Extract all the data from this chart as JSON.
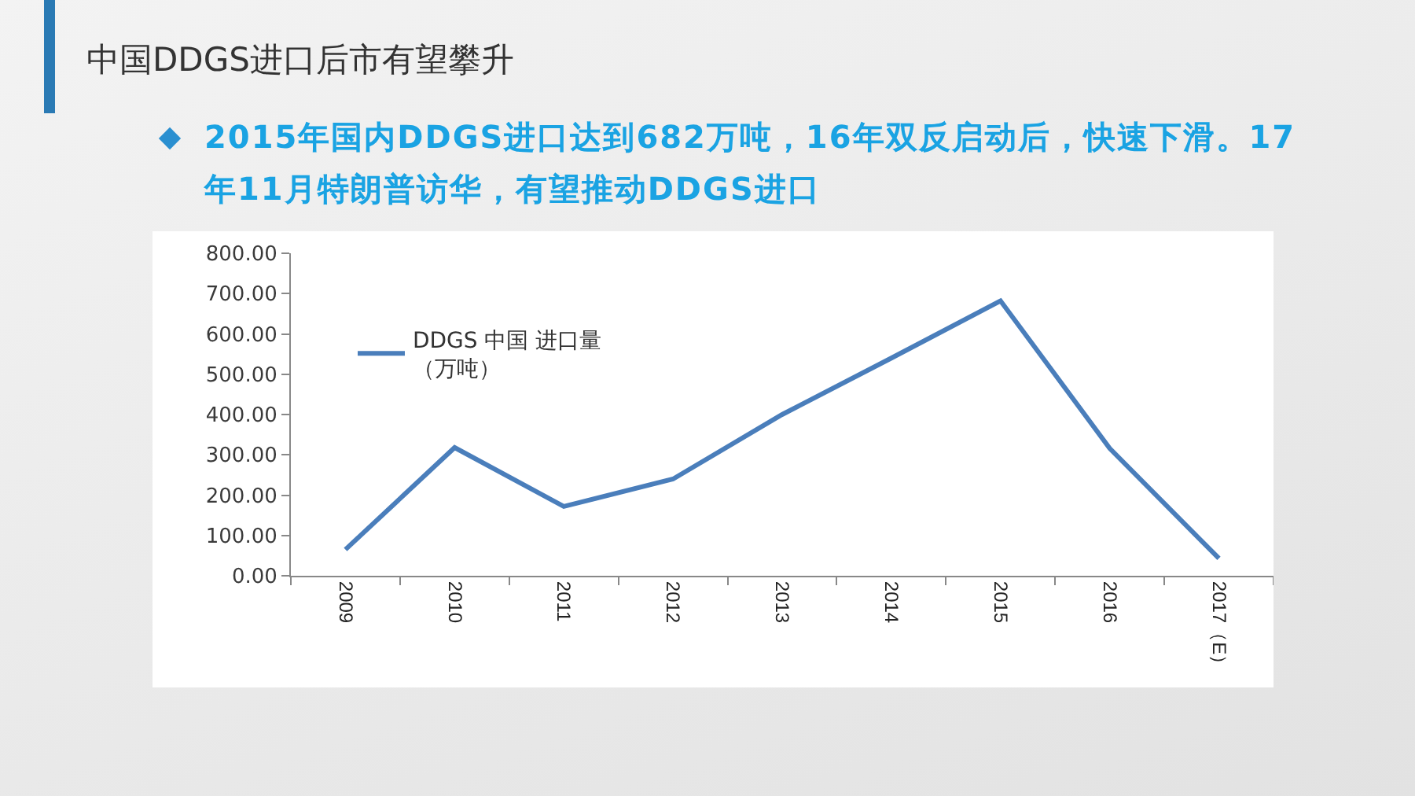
{
  "chart_data": {
    "type": "line",
    "title": "中国DDGS进口后市有望攀升",
    "subtitle": "2015年国内DDGS进口达到682万吨，16年双反启动后，快速下滑。17年11月特朗普访华，有望推动DDGS进口",
    "categories": [
      "2009",
      "2010",
      "2011",
      "2012",
      "2013",
      "2014",
      "2015",
      "2016",
      "2017（E）"
    ],
    "series": [
      {
        "name": "DDGS 中国 进口量（万吨）",
        "color": "#4a7ebb",
        "values": [
          65,
          318,
          172,
          240,
          400,
          540,
          682,
          316,
          43
        ]
      }
    ],
    "ylim": [
      0,
      800
    ],
    "yticks": [
      {
        "value": 0,
        "label": "0.00"
      },
      {
        "value": 100,
        "label": "100.00"
      },
      {
        "value": 200,
        "label": "200.00"
      },
      {
        "value": 300,
        "label": "300.00"
      },
      {
        "value": 400,
        "label": "400.00"
      },
      {
        "value": 500,
        "label": "500.00"
      },
      {
        "value": 600,
        "label": "600.00"
      },
      {
        "value": 700,
        "label": "700.00"
      },
      {
        "value": 800,
        "label": "800.00"
      }
    ],
    "grid": false,
    "legend": "top left",
    "marker": "none",
    "line_style": "solid"
  }
}
